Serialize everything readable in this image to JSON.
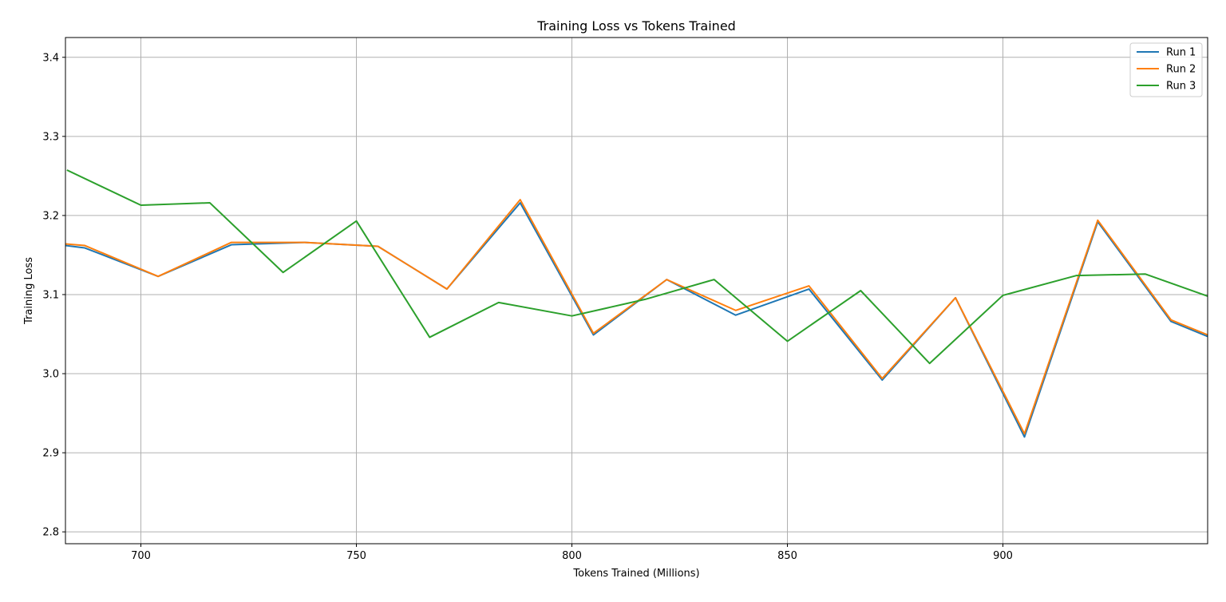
{
  "chart_data": {
    "type": "line",
    "title": "Training Loss vs Tokens Trained",
    "xlabel": "Tokens Trained (Millions)",
    "ylabel": "Training Loss",
    "xlim": [
      682.5,
      947.5
    ],
    "ylim": [
      2.785,
      3.425
    ],
    "xticks": [
      700,
      750,
      800,
      850,
      900
    ],
    "yticks": [
      2.8,
      2.9,
      3.0,
      3.1,
      3.2,
      3.3,
      3.4
    ],
    "ytick_labels": [
      "2.8",
      "2.9",
      "3.0",
      "3.1",
      "3.2",
      "3.3",
      "3.4"
    ],
    "grid": true,
    "legend_position": "top-right",
    "series": [
      {
        "name": "Run 1",
        "color": "#1f77b4",
        "x": [
          682.5,
          687,
          704,
          721,
          738,
          755,
          771,
          788,
          805,
          822,
          838,
          855,
          872,
          889,
          905,
          922,
          939,
          947.5
        ],
        "y": [
          3.162,
          3.159,
          3.123,
          3.163,
          3.166,
          3.161,
          3.107,
          3.216,
          3.049,
          3.119,
          3.074,
          3.107,
          2.992,
          3.096,
          2.92,
          3.192,
          3.066,
          3.047
        ]
      },
      {
        "name": "Run 2",
        "color": "#ff7f0e",
        "x": [
          682.5,
          687,
          704,
          721,
          738,
          755,
          771,
          788,
          805,
          822,
          838,
          855,
          872,
          889,
          905,
          922,
          939,
          947.5
        ],
        "y": [
          3.164,
          3.162,
          3.123,
          3.166,
          3.166,
          3.161,
          3.107,
          3.22,
          3.051,
          3.119,
          3.08,
          3.111,
          2.994,
          3.096,
          2.924,
          3.194,
          3.068,
          3.049
        ]
      },
      {
        "name": "Run 3",
        "color": "#2ca02c",
        "x": [
          683,
          700,
          716,
          733,
          750,
          767,
          783,
          800,
          817,
          833,
          850,
          867,
          883,
          900,
          917,
          933,
          947.5
        ],
        "y": [
          3.257,
          3.213,
          3.216,
          3.128,
          3.193,
          3.046,
          3.09,
          3.073,
          3.094,
          3.119,
          3.041,
          3.105,
          3.013,
          3.099,
          3.124,
          3.126,
          3.098
        ]
      }
    ]
  }
}
